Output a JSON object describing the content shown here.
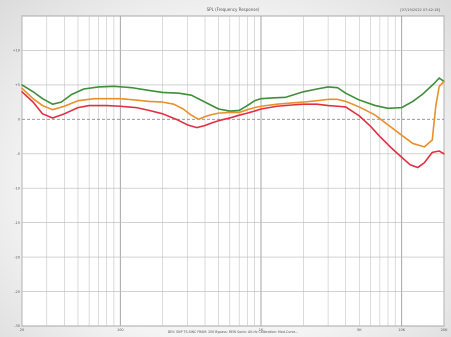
{
  "chart_data": {
    "type": "line",
    "title": "SPL (Frequency Response)",
    "corner_label": "[07/19/2022 07:42:18]",
    "footer": "DEV: SNP  TS-SINC  FRAM: 20K  Bypass: REW  Sonix: Alt-Hz  Calibration: Mod-Curve...",
    "xscale": "log",
    "xlim": [
      20,
      20000
    ],
    "x_tick_labels": [
      {
        "value": 20,
        "label": "20"
      },
      {
        "value": 100,
        "label": "100"
      },
      {
        "value": 1000,
        "label": "1K"
      },
      {
        "value": 5000,
        "label": "5K"
      },
      {
        "value": 10000,
        "label": "10K"
      },
      {
        "value": 20000,
        "label": "20K"
      }
    ],
    "ylim": [
      -30,
      15
    ],
    "y_tick_labels": [
      {
        "value": 10,
        "label": "+10"
      },
      {
        "value": 5,
        "label": "+5"
      },
      {
        "value": 0,
        "label": "0"
      },
      {
        "value": -5,
        "label": "-5"
      },
      {
        "value": -10,
        "label": "-10"
      },
      {
        "value": -15,
        "label": "-15"
      },
      {
        "value": -20,
        "label": "-20"
      },
      {
        "value": -25,
        "label": "-25"
      },
      {
        "value": -30,
        "label": "-30"
      }
    ],
    "grid": true,
    "series": [
      {
        "color": "#3f8f3a",
        "points": [
          [
            20,
            5.0
          ],
          [
            24,
            4.0
          ],
          [
            28,
            3.0
          ],
          [
            33,
            2.2
          ],
          [
            38,
            2.5
          ],
          [
            45,
            3.6
          ],
          [
            55,
            4.4
          ],
          [
            70,
            4.7
          ],
          [
            90,
            4.8
          ],
          [
            120,
            4.6
          ],
          [
            160,
            4.2
          ],
          [
            200,
            3.9
          ],
          [
            260,
            3.8
          ],
          [
            320,
            3.5
          ],
          [
            400,
            2.5
          ],
          [
            500,
            1.5
          ],
          [
            600,
            1.2
          ],
          [
            700,
            1.3
          ],
          [
            800,
            2.0
          ],
          [
            900,
            2.7
          ],
          [
            1000,
            3.0
          ],
          [
            1200,
            3.1
          ],
          [
            1500,
            3.2
          ],
          [
            2000,
            4.0
          ],
          [
            2500,
            4.4
          ],
          [
            3000,
            4.7
          ],
          [
            3500,
            4.6
          ],
          [
            4000,
            3.8
          ],
          [
            5000,
            2.8
          ],
          [
            6500,
            2.0
          ],
          [
            8000,
            1.6
          ],
          [
            10000,
            1.7
          ],
          [
            12000,
            2.6
          ],
          [
            14000,
            3.6
          ],
          [
            17000,
            5.2
          ],
          [
            18500,
            6.0
          ],
          [
            20000,
            5.5
          ]
        ]
      },
      {
        "color": "#e8912a",
        "points": [
          [
            20,
            4.5
          ],
          [
            24,
            3.0
          ],
          [
            28,
            2.0
          ],
          [
            33,
            1.4
          ],
          [
            40,
            1.9
          ],
          [
            50,
            2.7
          ],
          [
            65,
            3.0
          ],
          [
            80,
            3.0
          ],
          [
            100,
            3.0
          ],
          [
            130,
            2.8
          ],
          [
            160,
            2.6
          ],
          [
            200,
            2.5
          ],
          [
            240,
            2.2
          ],
          [
            280,
            1.5
          ],
          [
            320,
            0.6
          ],
          [
            360,
            0.0
          ],
          [
            400,
            0.4
          ],
          [
            450,
            0.7
          ],
          [
            500,
            0.9
          ],
          [
            600,
            1.0
          ],
          [
            700,
            1.0
          ],
          [
            800,
            1.4
          ],
          [
            900,
            1.7
          ],
          [
            1000,
            1.9
          ],
          [
            1300,
            2.2
          ],
          [
            1700,
            2.4
          ],
          [
            2000,
            2.5
          ],
          [
            2500,
            2.7
          ],
          [
            3000,
            2.9
          ],
          [
            3500,
            2.9
          ],
          [
            4000,
            2.6
          ],
          [
            5000,
            1.8
          ],
          [
            6500,
            0.6
          ],
          [
            8000,
            -0.8
          ],
          [
            10000,
            -2.3
          ],
          [
            12000,
            -3.5
          ],
          [
            14500,
            -4.0
          ],
          [
            16500,
            -3.0
          ],
          [
            17500,
            2.0
          ],
          [
            18500,
            4.8
          ],
          [
            20000,
            5.5
          ]
        ]
      },
      {
        "color": "#e03040",
        "points": [
          [
            20,
            4.0
          ],
          [
            24,
            2.5
          ],
          [
            28,
            0.8
          ],
          [
            33,
            0.2
          ],
          [
            40,
            0.8
          ],
          [
            50,
            1.7
          ],
          [
            60,
            2.0
          ],
          [
            80,
            2.0
          ],
          [
            100,
            1.9
          ],
          [
            130,
            1.7
          ],
          [
            160,
            1.3
          ],
          [
            200,
            0.8
          ],
          [
            250,
            0.0
          ],
          [
            300,
            -0.8
          ],
          [
            350,
            -1.2
          ],
          [
            400,
            -0.9
          ],
          [
            450,
            -0.5
          ],
          [
            500,
            -0.2
          ],
          [
            600,
            0.2
          ],
          [
            700,
            0.6
          ],
          [
            800,
            0.9
          ],
          [
            900,
            1.2
          ],
          [
            1000,
            1.5
          ],
          [
            1300,
            1.9
          ],
          [
            1700,
            2.1
          ],
          [
            2000,
            2.2
          ],
          [
            2500,
            2.2
          ],
          [
            3000,
            2.0
          ],
          [
            3500,
            1.9
          ],
          [
            4000,
            1.8
          ],
          [
            5000,
            0.5
          ],
          [
            6000,
            -1.0
          ],
          [
            7000,
            -2.5
          ],
          [
            8500,
            -4.2
          ],
          [
            10000,
            -5.5
          ],
          [
            11500,
            -6.6
          ],
          [
            13000,
            -7.0
          ],
          [
            14500,
            -6.3
          ],
          [
            16500,
            -4.8
          ],
          [
            18500,
            -4.6
          ],
          [
            20000,
            -5.0
          ]
        ]
      }
    ]
  }
}
